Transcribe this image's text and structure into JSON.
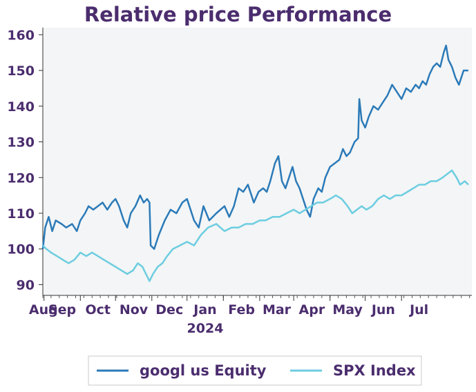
{
  "chart_data": {
    "type": "line",
    "title": "Relative price Performance",
    "xlabel": "",
    "ylabel": "",
    "ylim": [
      87,
      162
    ],
    "yticks": [
      90,
      100,
      110,
      120,
      130,
      140,
      150,
      160
    ],
    "xticks": [
      "Aug",
      "Sep",
      "Oct",
      "Nov",
      "Dec",
      "Jan",
      "Feb",
      "Mar",
      "Apr",
      "May",
      "Jun",
      "Jul"
    ],
    "year_label": "2024",
    "year_label_under": "Jan",
    "grid": false,
    "background": "#f3f5f6",
    "legend_position": "bottom",
    "x_start": "2023-07-31",
    "x_end": "2024-07-31",
    "series": [
      {
        "name": "googl us Equity",
        "color": "#2b7ab8",
        "points": [
          [
            "2023-07-31",
            100
          ],
          [
            "2023-08-02",
            106
          ],
          [
            "2023-08-05",
            109
          ],
          [
            "2023-08-08",
            105
          ],
          [
            "2023-08-11",
            108
          ],
          [
            "2023-08-16",
            107
          ],
          [
            "2023-08-20",
            106
          ],
          [
            "2023-08-25",
            107
          ],
          [
            "2023-08-29",
            105
          ],
          [
            "2023-09-01",
            108
          ],
          [
            "2023-09-05",
            110
          ],
          [
            "2023-09-08",
            112
          ],
          [
            "2023-09-12",
            111
          ],
          [
            "2023-09-16",
            112
          ],
          [
            "2023-09-20",
            113
          ],
          [
            "2023-09-24",
            111
          ],
          [
            "2023-09-28",
            113
          ],
          [
            "2023-10-01",
            114
          ],
          [
            "2023-10-04",
            112
          ],
          [
            "2023-10-08",
            108
          ],
          [
            "2023-10-11",
            106
          ],
          [
            "2023-10-14",
            110
          ],
          [
            "2023-10-18",
            112
          ],
          [
            "2023-10-22",
            115
          ],
          [
            "2023-10-25",
            113
          ],
          [
            "2023-10-28",
            114
          ],
          [
            "2023-10-30",
            113
          ],
          [
            "2023-10-31",
            101
          ],
          [
            "2023-11-03",
            100
          ],
          [
            "2023-11-07",
            104
          ],
          [
            "2023-11-12",
            108
          ],
          [
            "2023-11-17",
            111
          ],
          [
            "2023-11-22",
            110
          ],
          [
            "2023-11-27",
            113
          ],
          [
            "2023-12-01",
            114
          ],
          [
            "2023-12-04",
            111
          ],
          [
            "2023-12-07",
            108
          ],
          [
            "2023-12-11",
            106
          ],
          [
            "2023-12-15",
            112
          ],
          [
            "2023-12-20",
            108
          ],
          [
            "2023-12-26",
            110
          ],
          [
            "2024-01-02",
            112
          ],
          [
            "2024-01-06",
            109
          ],
          [
            "2024-01-10",
            112
          ],
          [
            "2024-01-14",
            117
          ],
          [
            "2024-01-18",
            116
          ],
          [
            "2024-01-22",
            118
          ],
          [
            "2024-01-27",
            113
          ],
          [
            "2024-01-31",
            116
          ],
          [
            "2024-02-04",
            117
          ],
          [
            "2024-02-07",
            116
          ],
          [
            "2024-02-10",
            119
          ],
          [
            "2024-02-14",
            124
          ],
          [
            "2024-02-17",
            126
          ],
          [
            "2024-02-20",
            119
          ],
          [
            "2024-02-23",
            117
          ],
          [
            "2024-02-26",
            120
          ],
          [
            "2024-02-29",
            123
          ],
          [
            "2024-03-03",
            119
          ],
          [
            "2024-03-06",
            117
          ],
          [
            "2024-03-09",
            114
          ],
          [
            "2024-03-12",
            111
          ],
          [
            "2024-03-15",
            109
          ],
          [
            "2024-03-18",
            114
          ],
          [
            "2024-03-22",
            117
          ],
          [
            "2024-03-25",
            116
          ],
          [
            "2024-03-28",
            120
          ],
          [
            "2024-04-01",
            123
          ],
          [
            "2024-04-05",
            124
          ],
          [
            "2024-04-09",
            125
          ],
          [
            "2024-04-12",
            128
          ],
          [
            "2024-04-15",
            126
          ],
          [
            "2024-04-18",
            127
          ],
          [
            "2024-04-22",
            130
          ],
          [
            "2024-04-25",
            131
          ],
          [
            "2024-04-26",
            142
          ],
          [
            "2024-04-28",
            136
          ],
          [
            "2024-05-01",
            134
          ],
          [
            "2024-05-04",
            137
          ],
          [
            "2024-05-08",
            140
          ],
          [
            "2024-05-12",
            139
          ],
          [
            "2024-05-16",
            141
          ],
          [
            "2024-05-20",
            143
          ],
          [
            "2024-05-24",
            146
          ],
          [
            "2024-05-28",
            144
          ],
          [
            "2024-06-01",
            142
          ],
          [
            "2024-06-05",
            145
          ],
          [
            "2024-06-09",
            144
          ],
          [
            "2024-06-13",
            146
          ],
          [
            "2024-06-16",
            145
          ],
          [
            "2024-06-19",
            147
          ],
          [
            "2024-06-22",
            146
          ],
          [
            "2024-06-25",
            149
          ],
          [
            "2024-06-28",
            151
          ],
          [
            "2024-07-01",
            152
          ],
          [
            "2024-07-04",
            151
          ],
          [
            "2024-07-07",
            155
          ],
          [
            "2024-07-09",
            157
          ],
          [
            "2024-07-11",
            153
          ],
          [
            "2024-07-14",
            151
          ],
          [
            "2024-07-17",
            148
          ],
          [
            "2024-07-20",
            146
          ],
          [
            "2024-07-24",
            150
          ],
          [
            "2024-07-28",
            150
          ]
        ]
      },
      {
        "name": "SPX Index",
        "color": "#6ccde0",
        "points": [
          [
            "2023-07-31",
            101
          ],
          [
            "2023-08-03",
            100
          ],
          [
            "2023-08-07",
            99
          ],
          [
            "2023-08-12",
            98
          ],
          [
            "2023-08-17",
            97
          ],
          [
            "2023-08-22",
            96
          ],
          [
            "2023-08-27",
            97
          ],
          [
            "2023-09-01",
            99
          ],
          [
            "2023-09-06",
            98
          ],
          [
            "2023-09-11",
            99
          ],
          [
            "2023-09-16",
            98
          ],
          [
            "2023-09-21",
            97
          ],
          [
            "2023-09-26",
            96
          ],
          [
            "2023-10-01",
            95
          ],
          [
            "2023-10-06",
            94
          ],
          [
            "2023-10-11",
            93
          ],
          [
            "2023-10-16",
            94
          ],
          [
            "2023-10-20",
            96
          ],
          [
            "2023-10-24",
            95
          ],
          [
            "2023-10-27",
            93
          ],
          [
            "2023-10-30",
            91
          ],
          [
            "2023-11-02",
            93
          ],
          [
            "2023-11-06",
            95
          ],
          [
            "2023-11-10",
            96
          ],
          [
            "2023-11-14",
            98
          ],
          [
            "2023-11-19",
            100
          ],
          [
            "2023-11-25",
            101
          ],
          [
            "2023-12-01",
            102
          ],
          [
            "2023-12-07",
            101
          ],
          [
            "2023-12-13",
            104
          ],
          [
            "2023-12-19",
            106
          ],
          [
            "2023-12-26",
            107
          ],
          [
            "2024-01-02",
            105
          ],
          [
            "2024-01-08",
            106
          ],
          [
            "2024-01-14",
            106
          ],
          [
            "2024-01-20",
            107
          ],
          [
            "2024-01-26",
            107
          ],
          [
            "2024-02-01",
            108
          ],
          [
            "2024-02-06",
            108
          ],
          [
            "2024-02-12",
            109
          ],
          [
            "2024-02-18",
            109
          ],
          [
            "2024-02-24",
            110
          ],
          [
            "2024-03-01",
            111
          ],
          [
            "2024-03-06",
            110
          ],
          [
            "2024-03-11",
            111
          ],
          [
            "2024-03-16",
            112
          ],
          [
            "2024-03-21",
            113
          ],
          [
            "2024-03-26",
            113
          ],
          [
            "2024-04-01",
            114
          ],
          [
            "2024-04-06",
            115
          ],
          [
            "2024-04-11",
            114
          ],
          [
            "2024-04-16",
            112
          ],
          [
            "2024-04-20",
            110
          ],
          [
            "2024-04-24",
            111
          ],
          [
            "2024-04-28",
            112
          ],
          [
            "2024-05-02",
            111
          ],
          [
            "2024-05-07",
            112
          ],
          [
            "2024-05-12",
            114
          ],
          [
            "2024-05-17",
            115
          ],
          [
            "2024-05-22",
            114
          ],
          [
            "2024-05-27",
            115
          ],
          [
            "2024-06-01",
            115
          ],
          [
            "2024-06-06",
            116
          ],
          [
            "2024-06-11",
            117
          ],
          [
            "2024-06-16",
            118
          ],
          [
            "2024-06-21",
            118
          ],
          [
            "2024-06-26",
            119
          ],
          [
            "2024-07-01",
            119
          ],
          [
            "2024-07-06",
            120
          ],
          [
            "2024-07-10",
            121
          ],
          [
            "2024-07-14",
            122
          ],
          [
            "2024-07-18",
            120
          ],
          [
            "2024-07-21",
            118
          ],
          [
            "2024-07-25",
            119
          ],
          [
            "2024-07-28",
            118
          ]
        ]
      }
    ]
  }
}
